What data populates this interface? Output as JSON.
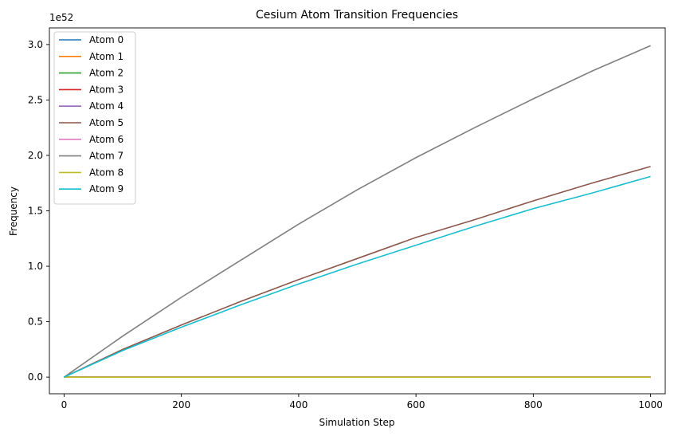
{
  "chart_data": {
    "type": "line",
    "title": "Cesium Atom Transition Frequencies",
    "xlabel": "Simulation Step",
    "ylabel": "Frequency",
    "y_offset_label": "1e52",
    "xlim": [
      -25,
      1025
    ],
    "ylim": [
      -0.15,
      3.15
    ],
    "xticks": [
      0,
      200,
      400,
      600,
      800,
      1000
    ],
    "xtick_labels": [
      "0",
      "200",
      "400",
      "600",
      "800",
      "1000"
    ],
    "yticks": [
      0.0,
      0.5,
      1.0,
      1.5,
      2.0,
      2.5,
      3.0
    ],
    "ytick_labels": [
      "0.0",
      "0.5",
      "1.0",
      "1.5",
      "2.0",
      "2.5",
      "3.0"
    ],
    "grid": false,
    "legend_position": "upper left",
    "x": [
      0,
      100,
      200,
      300,
      400,
      500,
      600,
      700,
      800,
      900,
      1000
    ],
    "series": [
      {
        "name": "Atom 0",
        "color": "#1f77b4",
        "values": [
          0,
          0,
          0,
          0,
          0,
          0,
          0,
          0,
          0,
          0,
          0
        ]
      },
      {
        "name": "Atom 1",
        "color": "#ff7f0e",
        "values": [
          0,
          0,
          0,
          0,
          0,
          0,
          0,
          0,
          0,
          0,
          0
        ]
      },
      {
        "name": "Atom 2",
        "color": "#2ca02c",
        "values": [
          0,
          0,
          0,
          0,
          0,
          0,
          0,
          0,
          0,
          0,
          0
        ]
      },
      {
        "name": "Atom 3",
        "color": "#d62728",
        "values": [
          0,
          0,
          0,
          0,
          0,
          0,
          0,
          0,
          0,
          0,
          0
        ]
      },
      {
        "name": "Atom 4",
        "color": "#9467bd",
        "values": [
          0,
          0,
          0,
          0,
          0,
          0,
          0,
          0,
          0,
          0,
          0
        ]
      },
      {
        "name": "Atom 5",
        "color": "#8c564b",
        "values": [
          0,
          0.25,
          0.47,
          0.68,
          0.88,
          1.07,
          1.26,
          1.42,
          1.59,
          1.75,
          1.9
        ]
      },
      {
        "name": "Atom 6",
        "color": "#e377c2",
        "values": [
          0,
          0,
          0,
          0,
          0,
          0,
          0,
          0,
          0,
          0,
          0
        ]
      },
      {
        "name": "Atom 7",
        "color": "#7f7f7f",
        "values": [
          0,
          0.37,
          0.72,
          1.05,
          1.38,
          1.69,
          1.98,
          2.25,
          2.51,
          2.76,
          2.99
        ]
      },
      {
        "name": "Atom 8",
        "color": "#bcbd22",
        "values": [
          0,
          0,
          0,
          0,
          0,
          0,
          0,
          0,
          0,
          0,
          0
        ]
      },
      {
        "name": "Atom 9",
        "color": "#17becf",
        "values": [
          0,
          0.24,
          0.45,
          0.65,
          0.84,
          1.02,
          1.19,
          1.36,
          1.52,
          1.66,
          1.81
        ]
      }
    ]
  }
}
